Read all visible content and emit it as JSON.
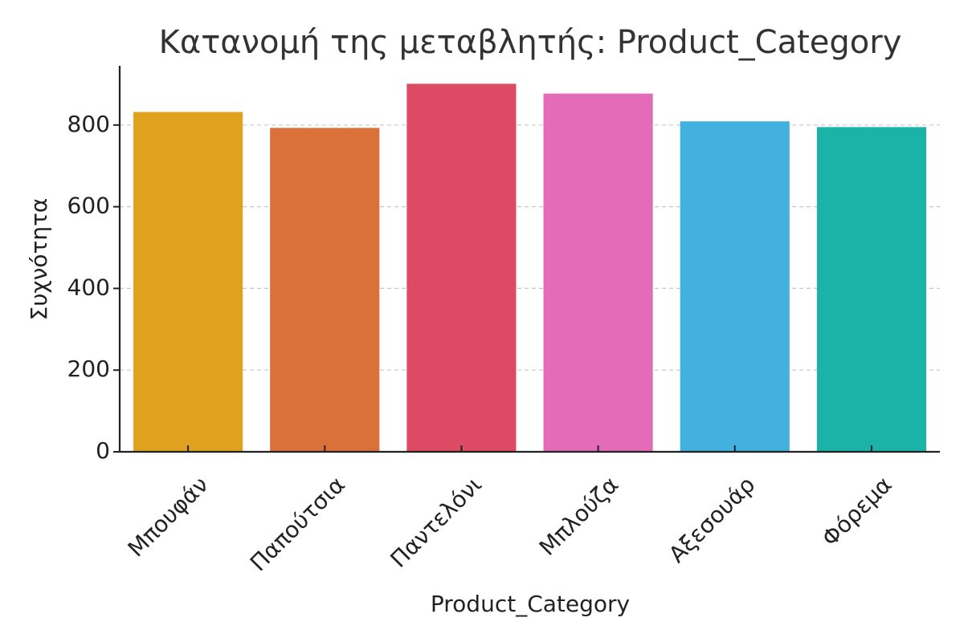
{
  "chart_data": {
    "type": "bar",
    "title": "Κατανομή της μεταβλητής: Product_Category",
    "xlabel": "Product_Category",
    "ylabel": "Συχνότητα",
    "categories": [
      "Μπουφάν",
      "Παπούτσια",
      "Παντελόνι",
      "Μπλούζα",
      "Αξεσουάρ",
      "Φόρεμα"
    ],
    "values": [
      832,
      793,
      901,
      877,
      809,
      795
    ],
    "colors": [
      "#E0A21E",
      "#DB713A",
      "#DC4A64",
      "#E36BB8",
      "#43B1E0",
      "#1BB2A8"
    ],
    "yticks": [
      0,
      200,
      400,
      600,
      800
    ],
    "ylim": [
      0,
      945
    ],
    "grid": true,
    "legend": "none"
  }
}
